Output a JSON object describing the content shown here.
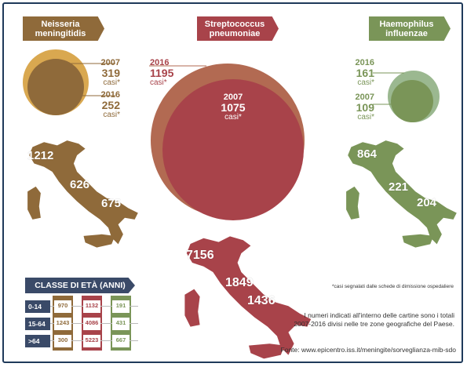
{
  "colors": {
    "neisseria": "#8f6a3a",
    "neisseria_light": "#d9a850",
    "strepto": "#a8434a",
    "strepto_light": "#b26a52",
    "haemo": "#7a9558",
    "haemo_light": "#9bb890",
    "navy": "#3a4a68"
  },
  "bacteria": [
    {
      "name": "Neisseria\nmeningitidis",
      "first": {
        "year": "2007",
        "count": "319",
        "unit": "casi*"
      },
      "second": {
        "year": "2016",
        "count": "252",
        "unit": "casi*"
      },
      "regions": {
        "north": "1212",
        "center": "626",
        "south": "675"
      }
    },
    {
      "name": "Streptococcus\npneumoniae",
      "first": {
        "year": "2016",
        "count": "1195",
        "unit": "casi*"
      },
      "second": {
        "year": "2007",
        "count": "1075",
        "unit": "casi*"
      },
      "regions": {
        "north": "7156",
        "center": "1849",
        "south": "1436"
      }
    },
    {
      "name": "Haemophilus\ninfluenzae",
      "first": {
        "year": "2016",
        "count": "161",
        "unit": "casi*"
      },
      "second": {
        "year": "2007",
        "count": "109",
        "unit": "casi*"
      },
      "regions": {
        "north": "864",
        "center": "221",
        "south": "204"
      }
    }
  ],
  "age_table": {
    "title": "CLASSE DI ETÀ (ANNI)",
    "rows": [
      {
        "label": "0-14",
        "values": [
          "970",
          "1132",
          "191"
        ]
      },
      {
        "label": "15-64",
        "values": [
          "1243",
          "4086",
          "431"
        ]
      },
      {
        "label": ">64",
        "values": [
          "300",
          "5223",
          "667"
        ]
      }
    ]
  },
  "footnote": "*casi segnalati dalle schede di dimissione ospedaliere",
  "note": "I numeri indicati all'interno delle cartine sono i totali\n2007-2016 divisi nelle tre zone geografiche del Paese.",
  "source": "Fonte: www.epicentro.iss.it/meningite/sorveglianza-mib-sdo"
}
